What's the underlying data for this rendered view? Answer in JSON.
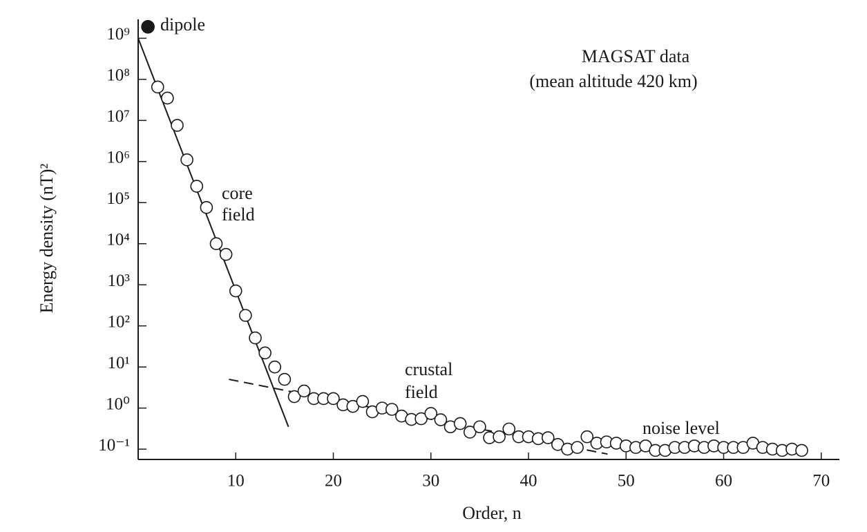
{
  "chart_data": {
    "type": "scatter",
    "xlabel": "Order, n",
    "ylabel": "Energy density (nT)²",
    "log_y": true,
    "color": "#1a1a1a",
    "xlim": [
      0,
      72
    ],
    "ylim": [
      0.05,
      3000000000
    ],
    "xticks": [
      10,
      20,
      30,
      40,
      50,
      60,
      70
    ],
    "yticks": [
      {
        "value": 0.1,
        "label": "10⁻¹"
      },
      {
        "value": 1,
        "label": "10⁰"
      },
      {
        "value": 10,
        "label": "10¹"
      },
      {
        "value": 100,
        "label": "10²"
      },
      {
        "value": 1000,
        "label": "10³"
      },
      {
        "value": 10000,
        "label": "10⁴"
      },
      {
        "value": 100000,
        "label": "10⁵"
      },
      {
        "value": 1000000,
        "label": "10⁶"
      },
      {
        "value": 10000000,
        "label": "10⁷"
      },
      {
        "value": 100000000,
        "label": "10⁸"
      },
      {
        "value": 1000000000,
        "label": "10⁹"
      }
    ],
    "series": [
      {
        "marker": "filled",
        "x": [
          1
        ],
        "values": [
          1900000000
        ]
      },
      {
        "marker": "open",
        "x": [
          2,
          3,
          4,
          5,
          6,
          7,
          8,
          9,
          10,
          11,
          12,
          13,
          14,
          15,
          16,
          17,
          18,
          19,
          20,
          21,
          22,
          23,
          24,
          25,
          26,
          27,
          28,
          29,
          30,
          31,
          32,
          33,
          34,
          35,
          36,
          37,
          38,
          39,
          40,
          41,
          42,
          43,
          44,
          45,
          46,
          47,
          48,
          49,
          50,
          51,
          52,
          53,
          54,
          55,
          56,
          57,
          58,
          59,
          60,
          61,
          62,
          63,
          64,
          65,
          66,
          67,
          68
        ],
        "values": [
          65000000,
          35000000,
          7600000,
          1100000,
          250000,
          76000,
          10000,
          5500,
          710,
          180,
          51,
          22,
          10,
          5,
          1.9,
          2.6,
          1.7,
          1.7,
          1.7,
          1.2,
          1.1,
          1.45,
          0.81,
          1,
          0.93,
          0.64,
          0.53,
          0.55,
          0.74,
          0.52,
          0.35,
          0.42,
          0.26,
          0.35,
          0.19,
          0.2,
          0.31,
          0.2,
          0.2,
          0.18,
          0.19,
          0.13,
          0.1,
          0.11,
          0.2,
          0.14,
          0.15,
          0.14,
          0.12,
          0.11,
          0.12,
          0.093,
          0.093,
          0.11,
          0.11,
          0.12,
          0.11,
          0.12,
          0.11,
          0.11,
          0.11,
          0.14,
          0.11,
          0.1,
          0.093,
          0.1,
          0.093
        ]
      }
    ],
    "lines": [
      {
        "style": "solid",
        "x": [
          0,
          15.4
        ],
        "values": [
          1000000000,
          0.35
        ]
      },
      {
        "style": "dashed",
        "x": [
          9.3,
          48.1
        ],
        "values": [
          5,
          0.076
        ]
      }
    ],
    "annotations": [
      "dipole",
      "core",
      "field",
      "crustal",
      "field",
      "noise level",
      "MAGSAT data",
      "(mean altitude 420 km)"
    ]
  }
}
